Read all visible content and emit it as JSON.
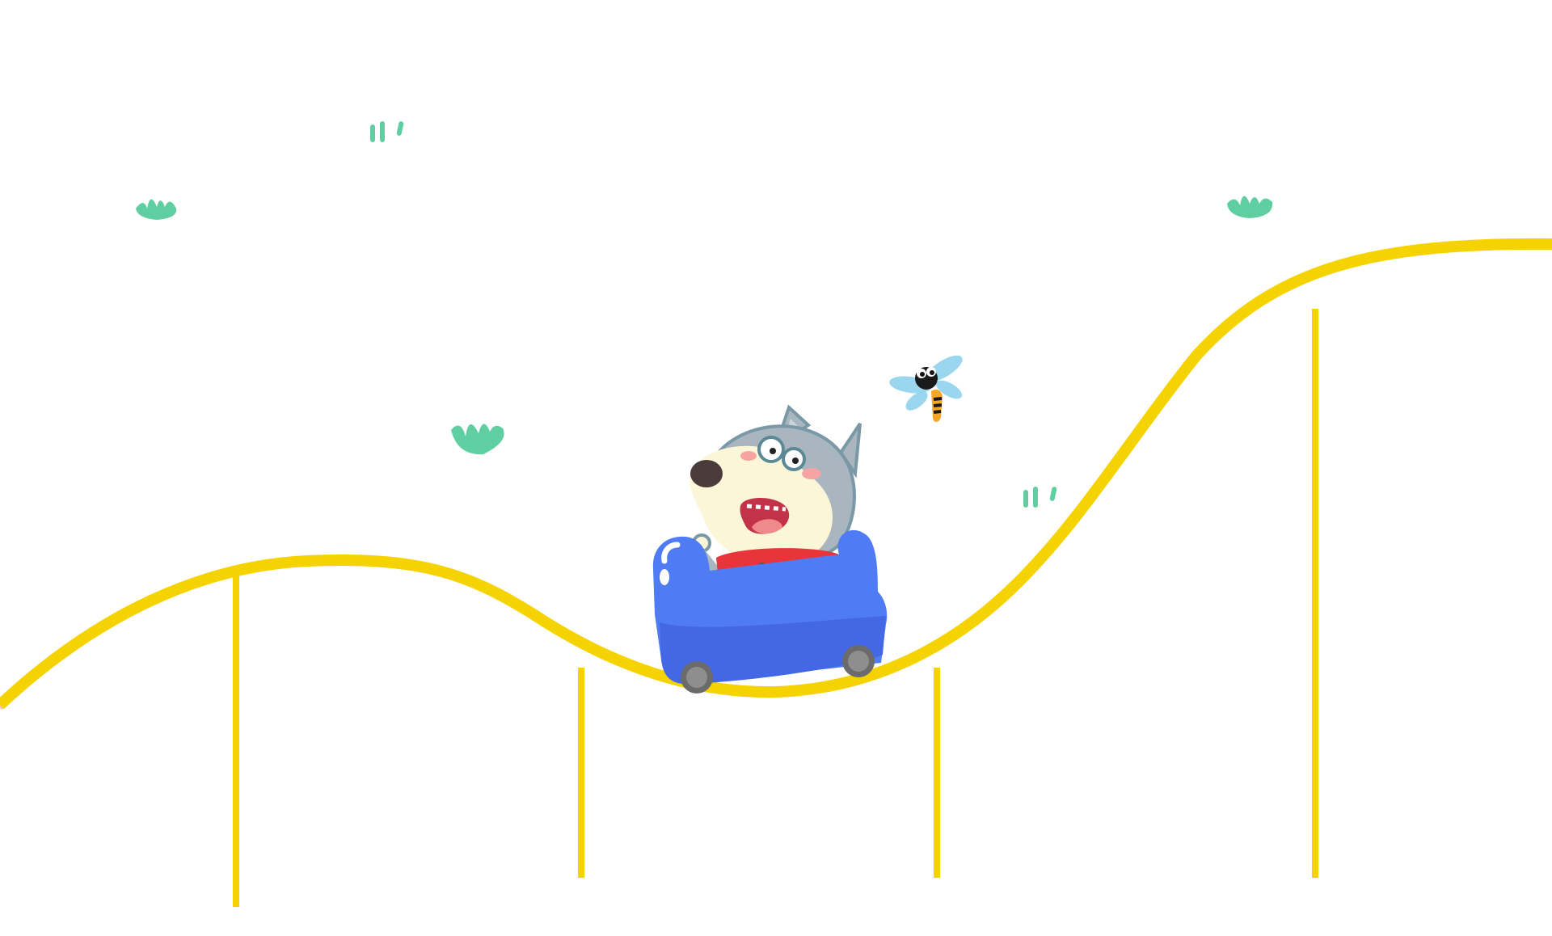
{
  "scene": {
    "description_label": "",
    "colors": {
      "background": "#ffffff",
      "track": "#f5d300",
      "track_shadow": "#f3c6b8",
      "grass": "#5fcfa2",
      "cart_body": "#4f7cf5",
      "cart_body_dark": "#4467e6",
      "cart_highlight": "#ffffff",
      "wheel": "#6b6b6b",
      "wheel_hub": "#8e8e8e",
      "wolf_fur": "#a9b6bf",
      "wolf_outline": "#7a98a6",
      "wolf_face": "#fcf6d8",
      "wolf_nose": "#4a3a3a",
      "wolf_cheek": "#f7a3a3",
      "mouth": "#c2334a",
      "tongue": "#f08a8a",
      "shirt": "#e8343a",
      "dragonfly_wing": "#8fd3ec",
      "dragonfly_body_yellow": "#f5a623",
      "dragonfly_body_dark": "#1a1a1a"
    },
    "icons": [
      "roller-coaster-track",
      "wolf-character",
      "roller-coaster-cart",
      "dragonfly-icon",
      "grass-tuft-icon",
      "grass-dashes-icon"
    ]
  }
}
